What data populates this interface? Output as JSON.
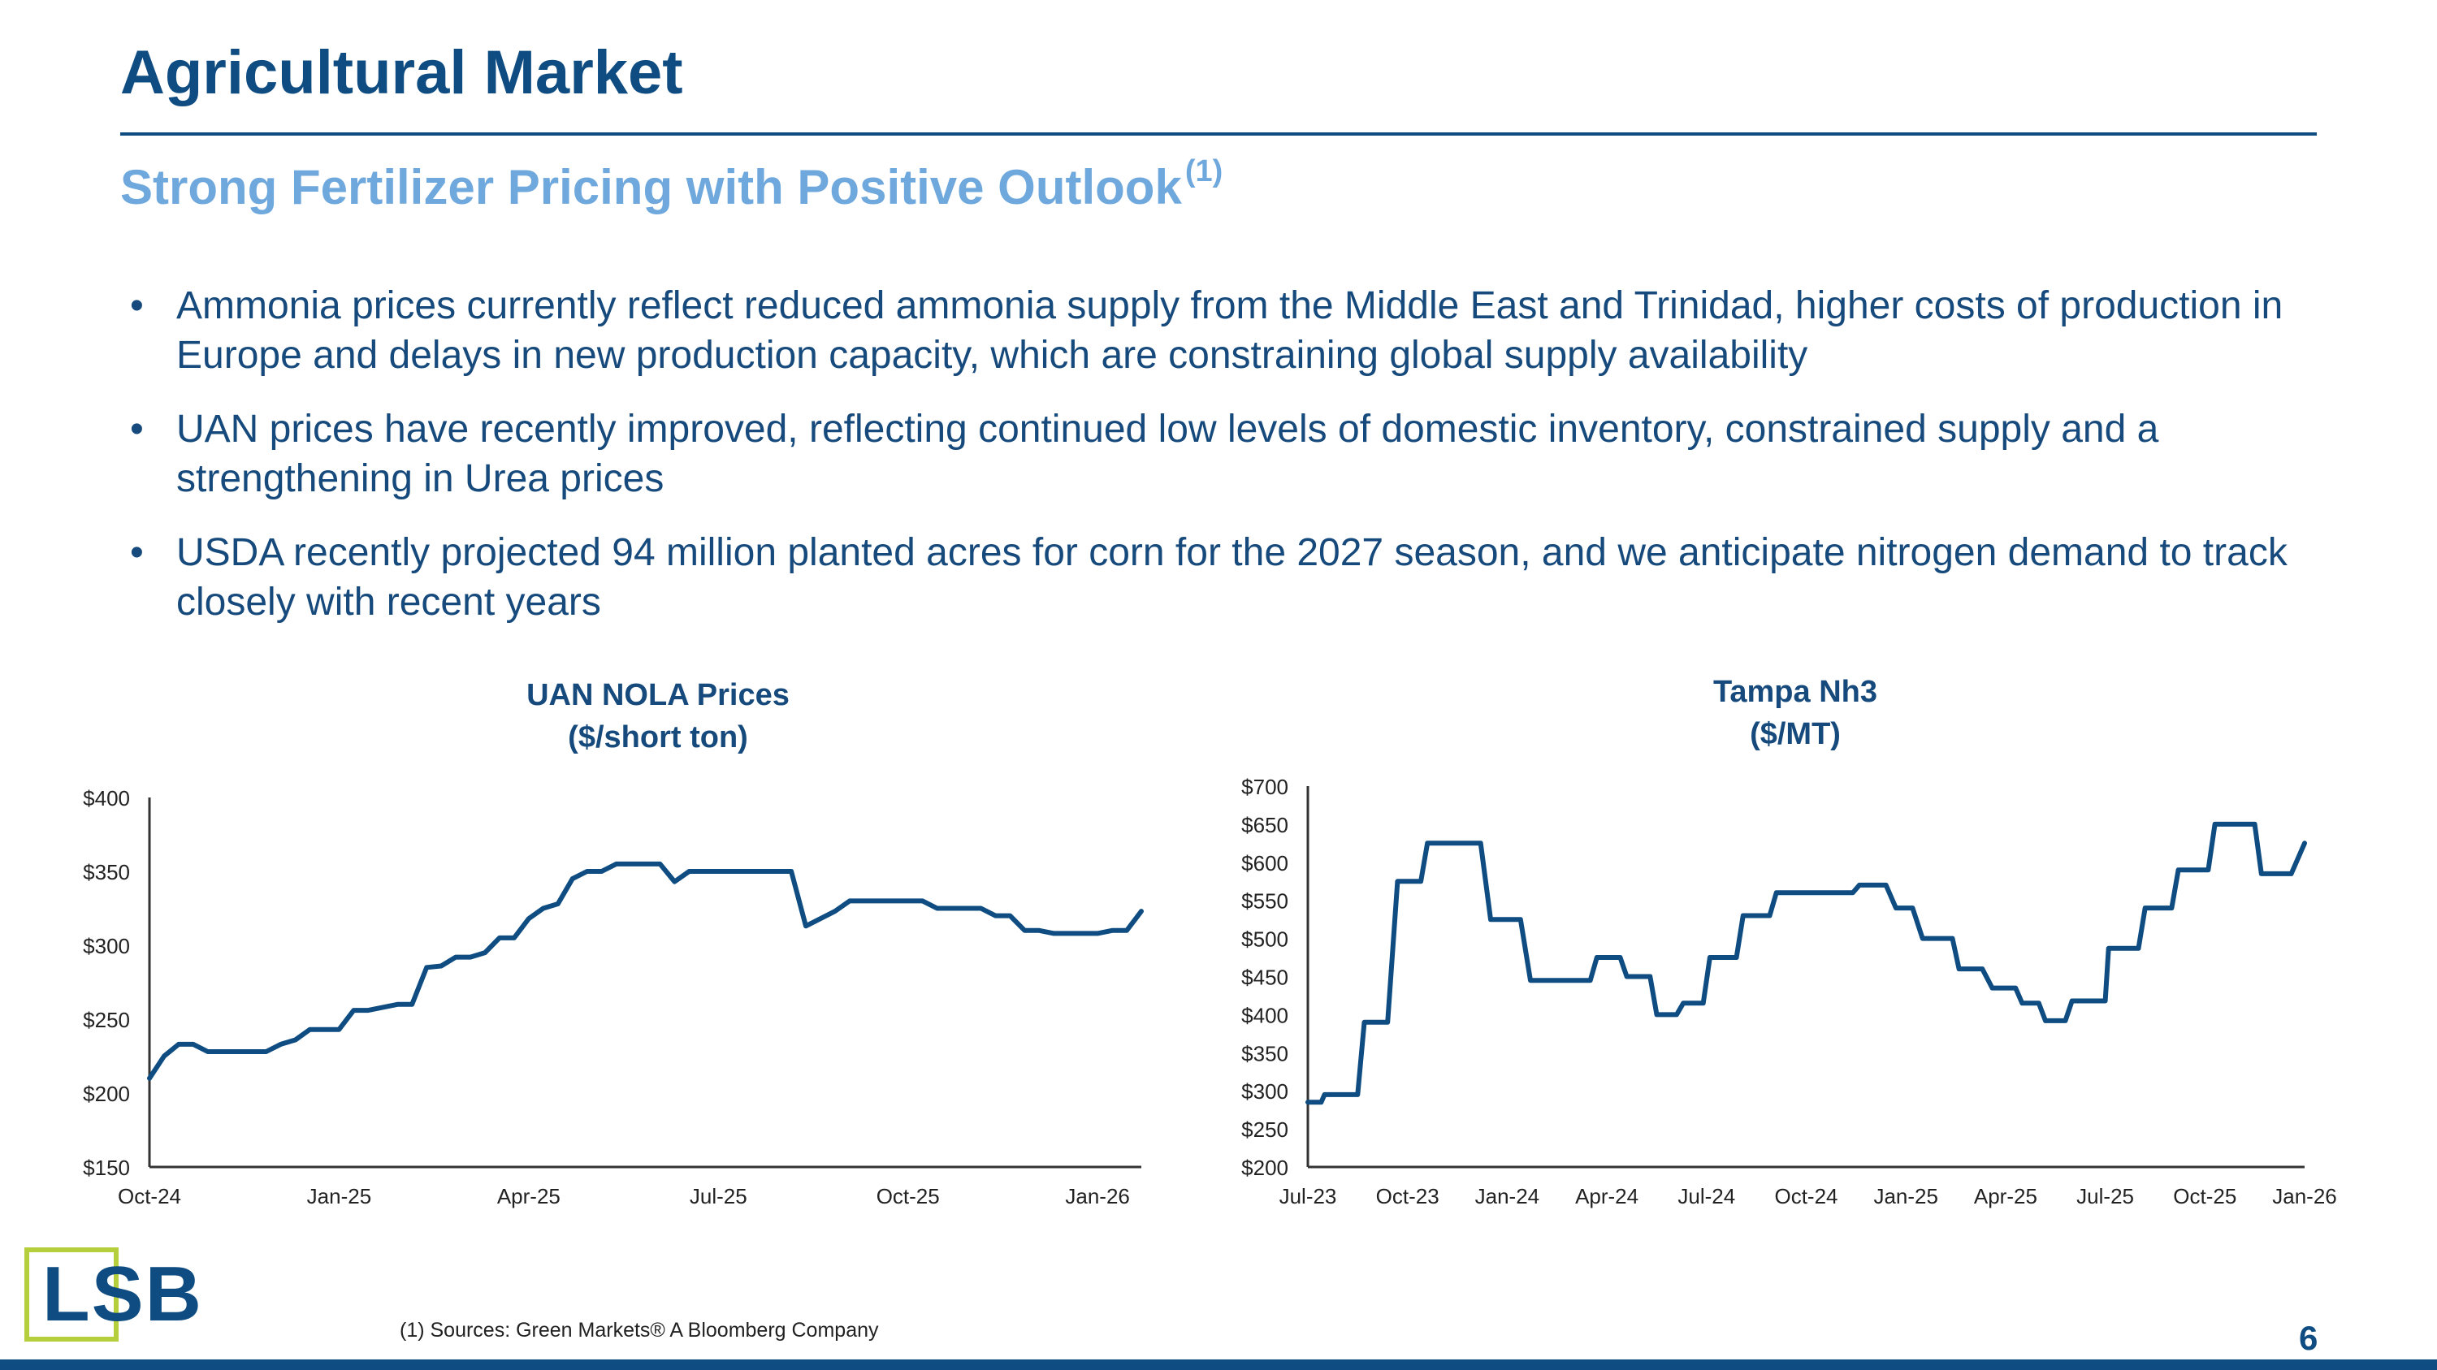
{
  "title": "Agricultural Market",
  "subtitle": "Strong Fertilizer Pricing with Positive Outlook",
  "subtitle_note": "(1)",
  "bullets": [
    "Ammonia prices currently reflect reduced ammonia supply from the Middle East and Trinidad, higher costs of production in Europe and delays in new production capacity, which are constraining global supply availability",
    "UAN prices have recently improved, reflecting continued low levels of domestic inventory, constrained supply and a strengthening in Urea prices",
    "USDA recently projected 94 million planted acres for corn for the 2027 season, and we anticipate nitrogen demand to track closely with recent years"
  ],
  "colors": {
    "title": "#0f4c81",
    "subtitle": "#6fa8dc",
    "line": "#0f4c81",
    "logo_accent": "#b5cf3c"
  },
  "logo": "LSB",
  "footnote": "(1)    Sources: Green Markets® A Bloomberg Company",
  "page_number": "6",
  "chart_data": [
    {
      "type": "line",
      "title": "UAN NOLA Prices",
      "subtitle": "($/short ton)",
      "ylim": [
        150,
        400
      ],
      "yticks": [
        150,
        200,
        250,
        300,
        350,
        400
      ],
      "ytick_labels": [
        "$150",
        "$200",
        "$250",
        "$300",
        "$350",
        "$400"
      ],
      "xlim": [
        0,
        68
      ],
      "xticks": [
        0,
        13,
        26,
        39,
        52,
        65
      ],
      "xtick_labels": [
        "Oct-24",
        "Jan-25",
        "Apr-25",
        "Jul-25",
        "Oct-25",
        "Jan-26"
      ],
      "grid": false,
      "series": [
        {
          "x": [
            0,
            1,
            2,
            3,
            4,
            5,
            6,
            7,
            8,
            9,
            10,
            11,
            12,
            13,
            14,
            15,
            16,
            17,
            18,
            19,
            20,
            21,
            22,
            23,
            24,
            25,
            26,
            27,
            28,
            29,
            30,
            31,
            32,
            33,
            34,
            35,
            36,
            37,
            38,
            39,
            40,
            41,
            42,
            43,
            44,
            45,
            46,
            47,
            48,
            49,
            50,
            51,
            52,
            53,
            54,
            55,
            56,
            57,
            58,
            59,
            60,
            61,
            62,
            63,
            64,
            65,
            66,
            67,
            68
          ],
          "y": [
            210,
            225,
            233,
            233,
            228,
            228,
            228,
            228,
            228,
            233,
            236,
            243,
            243,
            243,
            256,
            256,
            258,
            260,
            260,
            285,
            286,
            292,
            292,
            295,
            305,
            305,
            318,
            325,
            328,
            345,
            350,
            350,
            355,
            355,
            355,
            355,
            343,
            350,
            350,
            350,
            350,
            350,
            350,
            350,
            350,
            313,
            318,
            323,
            330,
            330,
            330,
            330,
            330,
            330,
            325,
            325,
            325,
            325,
            320,
            320,
            310,
            310,
            308,
            308,
            308,
            308,
            310,
            310,
            323
          ]
        }
      ]
    },
    {
      "type": "line",
      "title": "Tampa Nh3",
      "subtitle": "($/MT)",
      "ylim": [
        200,
        700
      ],
      "yticks": [
        200,
        250,
        300,
        350,
        400,
        450,
        500,
        550,
        600,
        650,
        700
      ],
      "ytick_labels": [
        "$200",
        "$250",
        "$300",
        "$350",
        "$400",
        "$450",
        "$500",
        "$550",
        "$600",
        "$650",
        "$700"
      ],
      "xlim": [
        0,
        30
      ],
      "xticks": [
        0,
        3,
        6,
        9,
        12,
        15,
        18,
        21,
        24,
        27,
        30
      ],
      "xtick_labels": [
        "Jul-23",
        "Oct-23",
        "Jan-24",
        "Apr-24",
        "Jul-24",
        "Oct-24",
        "Jan-25",
        "Apr-25",
        "Jul-25",
        "Oct-25",
        "Jan-26"
      ],
      "grid": false,
      "series": [
        {
          "x": [
            0,
            0.4,
            0.5,
            1.5,
            1.7,
            2.4,
            2.7,
            3.4,
            3.6,
            5.2,
            5.5,
            6.4,
            6.7,
            8.5,
            8.7,
            9.4,
            9.6,
            10.3,
            10.5,
            11.1,
            11.3,
            11.9,
            12.1,
            12.9,
            13.1,
            13.9,
            14.1,
            14.8,
            15.1,
            16.4,
            16.6,
            17.4,
            17.7,
            18.2,
            18.5,
            19.4,
            19.6,
            20.3,
            20.6,
            21.3,
            21.5,
            22.0,
            22.2,
            22.8,
            23.0,
            24.0,
            24.1,
            25.0,
            25.2,
            26.0,
            26.2,
            27.1,
            27.3,
            28.5,
            28.7,
            29.4,
            29.6,
            30.0
          ],
          "y": [
            285,
            285,
            295,
            295,
            390,
            390,
            575,
            575,
            625,
            625,
            525,
            525,
            445,
            445,
            475,
            475,
            450,
            450,
            400,
            400,
            415,
            415,
            475,
            475,
            530,
            530,
            560,
            560,
            560,
            560,
            570,
            570,
            540,
            540,
            500,
            500,
            460,
            460,
            435,
            435,
            415,
            415,
            392,
            392,
            418,
            418,
            487,
            487,
            540,
            540,
            590,
            590,
            650,
            650,
            585,
            585,
            585,
            625
          ]
        }
      ]
    }
  ]
}
